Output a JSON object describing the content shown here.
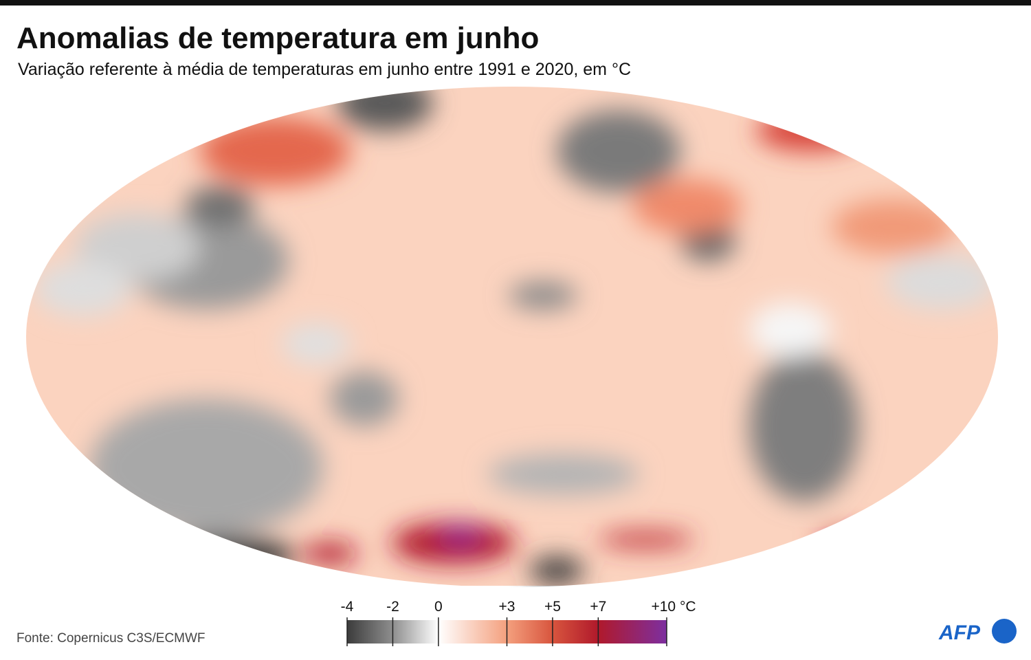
{
  "header": {
    "title": "Anomalias de temperatura em junho",
    "subtitle": "Variação referente à média de temperaturas em junho entre 1991 e 2020, em °C"
  },
  "legend": {
    "ticks": [
      -4,
      -2,
      0,
      {
        "value": 3,
        "label": "+3"
      },
      {
        "value": 5,
        "label": "+5"
      },
      {
        "value": 7,
        "label": "+7"
      },
      {
        "value": 10,
        "label": "+10 °C"
      }
    ],
    "colors": [
      "#3c3c3c",
      "#8e8e8e",
      "#ffffff",
      "#f4a07e",
      "#d8553e",
      "#b0192b",
      "#7d2fa0"
    ]
  },
  "source": "Fonte: Copernicus C3S/ECMWF",
  "logo": "AFP"
}
